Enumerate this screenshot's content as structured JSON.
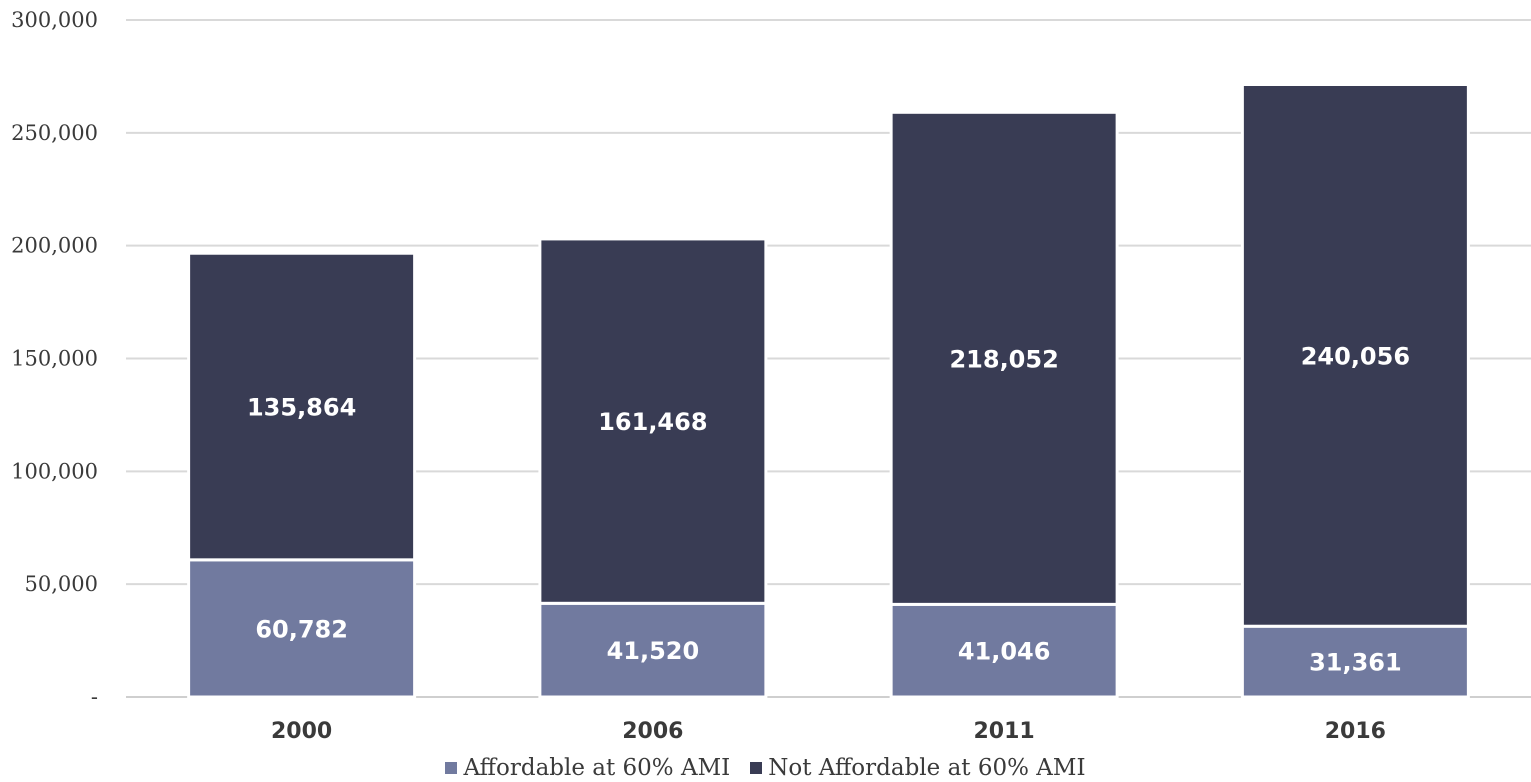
{
  "chart_data": {
    "type": "bar",
    "stacked": true,
    "categories": [
      "2000",
      "2006",
      "2011",
      "2016"
    ],
    "series": [
      {
        "name": "Affordable at 60% AMI",
        "values": [
          60782,
          41520,
          41046,
          31361
        ],
        "color": "#717a9f"
      },
      {
        "name": "Not Affordable at 60% AMI",
        "values": [
          135864,
          161468,
          218052,
          240056
        ],
        "color": "#393c54"
      }
    ],
    "data_labels": [
      [
        "60,782",
        "41,520",
        "41,046",
        "31,361"
      ],
      [
        "135,864",
        "161,468",
        "218,052",
        "240,056"
      ]
    ],
    "ylim": [
      0,
      300000
    ],
    "yticks": [
      0,
      50000,
      100000,
      150000,
      200000,
      250000,
      300000
    ],
    "ytick_labels": [
      "-",
      "50,000",
      "100,000",
      "150,000",
      "200,000",
      "250,000",
      "300,000"
    ],
    "xlabel": "",
    "ylabel": "",
    "title": "",
    "grid": true,
    "legend_position": "bottom"
  }
}
